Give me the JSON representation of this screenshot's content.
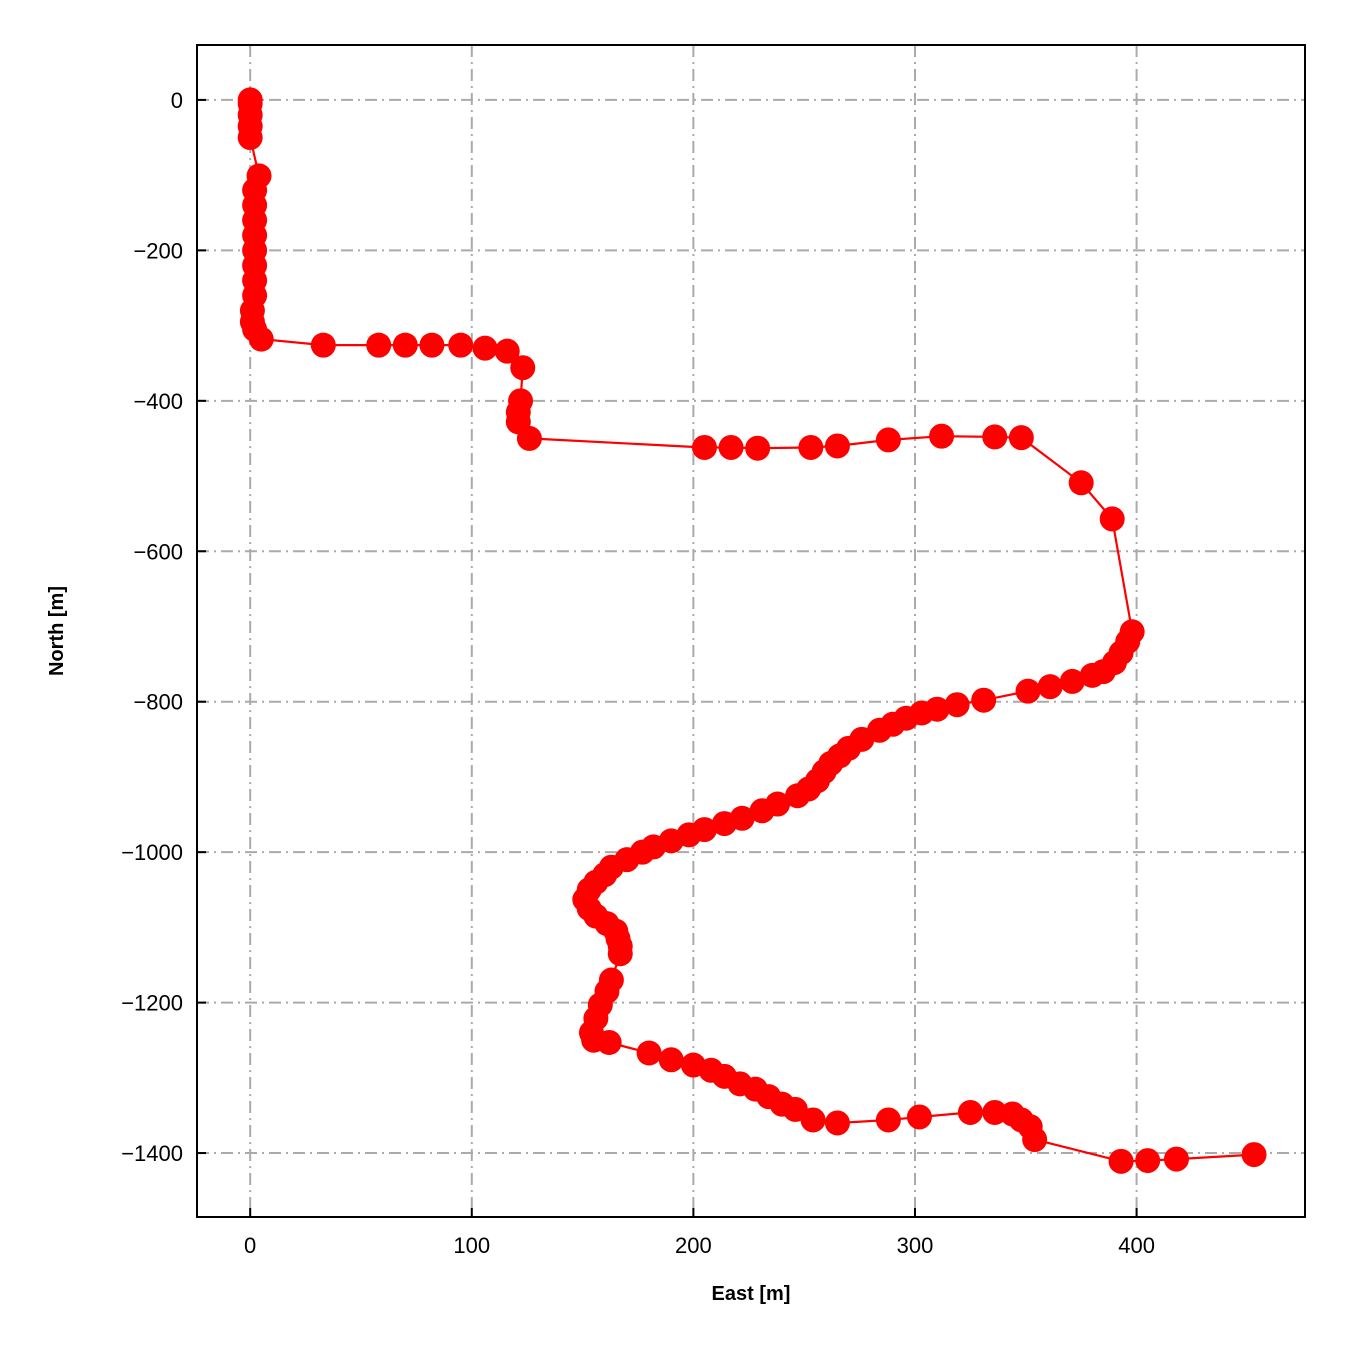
{
  "chart_data": {
    "type": "line",
    "title": "",
    "xlabel": "East [m]",
    "ylabel": "North [m]",
    "xlim": [
      -24,
      476
    ],
    "ylim": [
      -1485,
      73
    ],
    "xticks": [
      0,
      100,
      200,
      300,
      400
    ],
    "yticks": [
      0,
      -200,
      -400,
      -600,
      -800,
      -1000,
      -1200,
      -1400
    ],
    "xtick_labels": [
      "0",
      "100",
      "200",
      "300",
      "400"
    ],
    "ytick_labels": [
      "0",
      "−200",
      "−400",
      "−600",
      "−800",
      "−1000",
      "−1200",
      "−1400"
    ],
    "grid": true,
    "grid_style": "dash-dot",
    "grid_color": "#aaaaaa",
    "marker": "circle",
    "series": [
      {
        "color": "#ff0000",
        "x": [
          0,
          0,
          0,
          0,
          0,
          4,
          2,
          2,
          2,
          2,
          2,
          2,
          2,
          2,
          1,
          1,
          2,
          5,
          33,
          58,
          70,
          82,
          95,
          106,
          116,
          123,
          122,
          121,
          121,
          126,
          205,
          217,
          229,
          253,
          265,
          288,
          312,
          336,
          348,
          375,
          389,
          398,
          396,
          393,
          390,
          385,
          380,
          371,
          361,
          351,
          331,
          319,
          310,
          303,
          296,
          290,
          284,
          276,
          270,
          266,
          262,
          259,
          256,
          252,
          247,
          238,
          231,
          222,
          214,
          205,
          198,
          190,
          182,
          177,
          170,
          163,
          160,
          156,
          153,
          151,
          153,
          156,
          161,
          165,
          166,
          167,
          167,
          163,
          161,
          158,
          156,
          154,
          155,
          162,
          180,
          190,
          200,
          208,
          214,
          221,
          228,
          234,
          240,
          246,
          254,
          265,
          288,
          302,
          325,
          336,
          344,
          348,
          352,
          354,
          393,
          405,
          418,
          453
        ],
        "y": [
          0,
          -5,
          -20,
          -35,
          -50,
          -101,
          -120,
          -140,
          -160,
          -180,
          -200,
          -220,
          -240,
          -260,
          -280,
          -295,
          -305,
          -318,
          -326,
          -326,
          -326,
          -326,
          -326,
          -330,
          -334,
          -356,
          -400,
          -415,
          -428,
          -450,
          -462,
          -462,
          -463,
          -462,
          -460,
          -452,
          -447,
          -448,
          -449,
          -509,
          -557,
          -707,
          -720,
          -735,
          -748,
          -760,
          -765,
          -773,
          -780,
          -786,
          -798,
          -804,
          -810,
          -815,
          -822,
          -830,
          -838,
          -850,
          -862,
          -872,
          -882,
          -893,
          -905,
          -916,
          -925,
          -936,
          -945,
          -955,
          -962,
          -970,
          -977,
          -985,
          -993,
          -1000,
          -1010,
          -1020,
          -1030,
          -1040,
          -1050,
          -1063,
          -1075,
          -1085,
          -1095,
          -1105,
          -1115,
          -1125,
          -1135,
          -1170,
          -1185,
          -1203,
          -1221,
          -1240,
          -1250,
          -1253,
          -1267,
          -1276,
          -1283,
          -1290,
          -1298,
          -1308,
          -1315,
          -1325,
          -1335,
          -1342,
          -1356,
          -1360,
          -1356,
          -1352,
          -1346,
          -1346,
          -1348,
          -1356,
          -1365,
          -1382,
          -1411,
          -1410,
          -1408,
          -1402
        ]
      }
    ]
  }
}
